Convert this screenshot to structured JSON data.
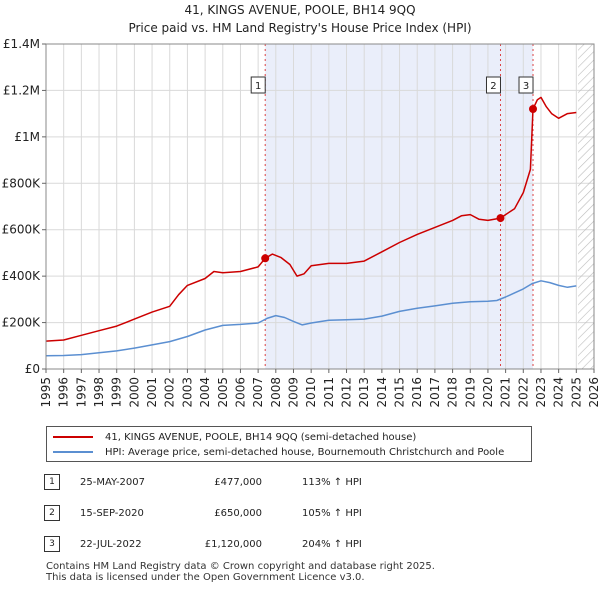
{
  "chart_data": {
    "type": "line",
    "title": "41, KINGS AVENUE, POOLE, BH14 9QQ",
    "subtitle": "Price paid vs. HM Land Registry's House Price Index (HPI)",
    "xlabel": "",
    "ylabel": "",
    "xlim": [
      1995,
      2026
    ],
    "ylim": [
      0,
      1400000
    ],
    "grid": true,
    "x_ticks": [
      "1995",
      "1996",
      "1997",
      "1998",
      "1999",
      "2000",
      "2001",
      "2002",
      "2003",
      "2004",
      "2005",
      "2006",
      "2007",
      "2008",
      "2009",
      "2010",
      "2011",
      "2012",
      "2013",
      "2014",
      "2015",
      "2016",
      "2017",
      "2018",
      "2019",
      "2020",
      "2021",
      "2022",
      "2023",
      "2024",
      "2025",
      "2026"
    ],
    "y_ticks": [
      {
        "value": 0,
        "label": "£0"
      },
      {
        "value": 200000,
        "label": "£200K"
      },
      {
        "value": 400000,
        "label": "£400K"
      },
      {
        "value": 600000,
        "label": "£600K"
      },
      {
        "value": 800000,
        "label": "£800K"
      },
      {
        "value": 1000000,
        "label": "£1M"
      },
      {
        "value": 1200000,
        "label": "£1.2M"
      },
      {
        "value": 1400000,
        "label": "£1.4M"
      }
    ],
    "shaded_period": {
      "start": 2007.4,
      "end": 2022.55
    },
    "hatched_from": 2025.1,
    "series": [
      {
        "name": "41, KINGS AVENUE, POOLE, BH14 9QQ (semi-detached house)",
        "color": "#cc0000",
        "x": [
          1995.0,
          1996.0,
          1997.0,
          1998.0,
          1999.0,
          2000.0,
          2001.0,
          2002.0,
          2002.5,
          2003.0,
          2004.0,
          2004.5,
          2005.0,
          2006.0,
          2007.0,
          2007.4,
          2007.8,
          2008.3,
          2008.8,
          2009.2,
          2009.6,
          2010.0,
          2011.0,
          2012.0,
          2013.0,
          2014.0,
          2015.0,
          2016.0,
          2017.0,
          2018.0,
          2018.5,
          2019.0,
          2019.5,
          2020.0,
          2020.71,
          2021.0,
          2021.5,
          2022.0,
          2022.4,
          2022.55,
          2022.8,
          2023.0,
          2023.3,
          2023.6,
          2024.0,
          2024.5,
          2025.0
        ],
        "values": [
          120000,
          125000,
          145000,
          165000,
          185000,
          215000,
          245000,
          270000,
          320000,
          360000,
          390000,
          420000,
          415000,
          420000,
          440000,
          477000,
          495000,
          480000,
          450000,
          400000,
          410000,
          445000,
          455000,
          455000,
          465000,
          505000,
          545000,
          580000,
          610000,
          640000,
          660000,
          665000,
          645000,
          640000,
          650000,
          665000,
          690000,
          760000,
          860000,
          1120000,
          1160000,
          1170000,
          1130000,
          1100000,
          1080000,
          1100000,
          1105000
        ]
      },
      {
        "name": "HPI: Average price, semi-detached house, Bournemouth Christchurch and Poole",
        "color": "#5b8fd1",
        "x": [
          1995.0,
          1996.0,
          1997.0,
          1998.0,
          1999.0,
          2000.0,
          2001.0,
          2002.0,
          2003.0,
          2004.0,
          2005.0,
          2006.0,
          2007.0,
          2007.5,
          2008.0,
          2008.5,
          2009.0,
          2009.5,
          2010.0,
          2011.0,
          2012.0,
          2013.0,
          2014.0,
          2015.0,
          2016.0,
          2017.0,
          2018.0,
          2019.0,
          2020.0,
          2020.5,
          2021.0,
          2021.5,
          2022.0,
          2022.5,
          2023.0,
          2023.5,
          2024.0,
          2024.5,
          2025.0
        ],
        "values": [
          57000,
          58000,
          62000,
          70000,
          78000,
          90000,
          104000,
          118000,
          140000,
          168000,
          188000,
          192000,
          198000,
          218000,
          230000,
          222000,
          205000,
          190000,
          198000,
          210000,
          212000,
          215000,
          228000,
          248000,
          262000,
          272000,
          283000,
          290000,
          292000,
          295000,
          310000,
          328000,
          345000,
          368000,
          380000,
          372000,
          360000,
          352000,
          358000
        ]
      }
    ],
    "transactions": [
      {
        "label": "1",
        "x": 2007.4,
        "value": 477000
      },
      {
        "label": "2",
        "x": 2020.71,
        "value": 650000
      },
      {
        "label": "3",
        "x": 2022.55,
        "value": 1120000
      }
    ]
  },
  "legend": {
    "entries": [
      {
        "label": "41, KINGS AVENUE, POOLE, BH14 9QQ (semi-detached house)",
        "color": "#cc0000"
      },
      {
        "label": "HPI: Average price, semi-detached house, Bournemouth Christchurch and Poole",
        "color": "#5b8fd1"
      }
    ]
  },
  "table": {
    "rows": [
      {
        "num": "1",
        "date": "25-MAY-2007",
        "price": "£477,000",
        "hpi": "113% ↑ HPI"
      },
      {
        "num": "2",
        "date": "15-SEP-2020",
        "price": "£650,000",
        "hpi": "105% ↑ HPI"
      },
      {
        "num": "3",
        "date": "22-JUL-2022",
        "price": "£1,120,000",
        "hpi": "204% ↑ HPI"
      }
    ]
  },
  "footer": {
    "line1": "Contains HM Land Registry data © Crown copyright and database right 2025.",
    "line2": "This data is licensed under the Open Government Licence v3.0."
  }
}
